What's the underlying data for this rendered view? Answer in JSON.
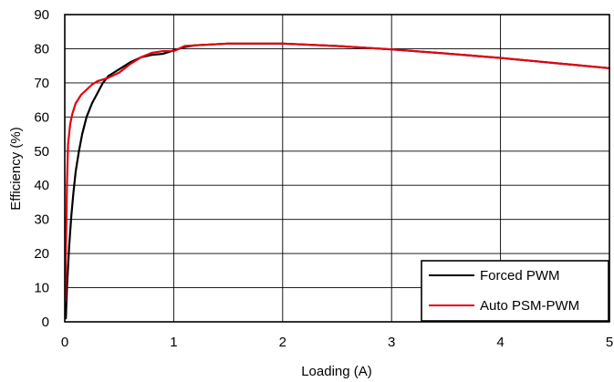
{
  "chart_data": {
    "type": "line",
    "xlabel": "Loading (A)",
    "ylabel": "Efficiency (%)",
    "xlim": [
      0,
      5
    ],
    "ylim": [
      0,
      90
    ],
    "x_ticks": [
      "0",
      "1",
      "2",
      "3",
      "4",
      "5"
    ],
    "y_ticks": [
      "0",
      "10",
      "20",
      "30",
      "40",
      "50",
      "60",
      "70",
      "80",
      "90"
    ],
    "grid": true,
    "legend_position": "bottom-right",
    "series": [
      {
        "name": "Forced PWM",
        "color": "#000000",
        "x": [
          0.01,
          0.02,
          0.04,
          0.06,
          0.08,
          0.1,
          0.13,
          0.16,
          0.2,
          0.25,
          0.3,
          0.35,
          0.4,
          0.45,
          0.5,
          0.6,
          0.7,
          0.8,
          0.9,
          1.0,
          1.1,
          1.2,
          1.5,
          2.0,
          2.5,
          3.0,
          3.5,
          4.0,
          4.5,
          5.0
        ],
        "values": [
          1,
          10,
          22,
          31,
          38,
          44,
          50,
          55,
          60,
          64,
          67,
          70,
          72,
          73,
          74,
          76,
          77.5,
          78.2,
          78.5,
          79.5,
          80.5,
          81,
          81.5,
          81.5,
          80.8,
          79.8,
          78.6,
          77.3,
          75.8,
          74.3
        ]
      },
      {
        "name": "Auto PSM-PWM",
        "color": "#e3000f",
        "x": [
          0.005,
          0.01,
          0.02,
          0.03,
          0.05,
          0.07,
          0.1,
          0.15,
          0.2,
          0.25,
          0.3,
          0.4,
          0.5,
          0.6,
          0.7,
          0.8,
          0.9,
          1.0,
          1.1,
          1.2,
          1.5,
          2.0,
          2.5,
          3.0,
          3.5,
          4.0,
          4.5,
          5.0
        ],
        "values": [
          6,
          20,
          40,
          52,
          58,
          61,
          64,
          66.5,
          68,
          69.5,
          70.5,
          71.5,
          73,
          75.5,
          77.5,
          78.8,
          79.3,
          79.3,
          80.8,
          81,
          81.5,
          81.5,
          80.8,
          79.8,
          78.6,
          77.3,
          75.8,
          74.3
        ]
      }
    ]
  }
}
